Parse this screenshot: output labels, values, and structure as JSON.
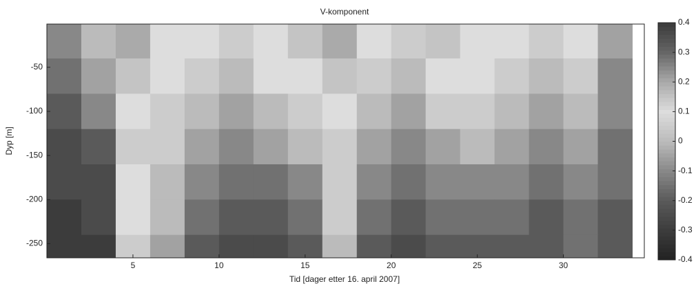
{
  "chart_data": {
    "type": "heatmap",
    "title": "V-komponent",
    "xlabel": "Tid [dager etter 16. april 2007]",
    "ylabel": "Dyp [m]",
    "x": [
      1,
      3,
      5,
      7,
      9,
      11,
      13,
      15,
      17,
      19,
      21,
      23,
      25,
      27,
      29,
      31,
      33
    ],
    "y": [
      -20,
      -60,
      -100,
      -140,
      -180,
      -220,
      -260
    ],
    "z": [
      [
        -0.1,
        0.0,
        0.2,
        0.1,
        0.1,
        0.05,
        0.1,
        0.15,
        0.2,
        0.1,
        0.05,
        0.15,
        0.1,
        0.1,
        0.05,
        0.1,
        -0.05
      ],
      [
        -0.15,
        -0.05,
        0.15,
        0.1,
        0.05,
        0.0,
        0.1,
        0.1,
        0.15,
        0.05,
        0.0,
        0.1,
        0.1,
        0.05,
        0.0,
        0.05,
        -0.1
      ],
      [
        -0.2,
        -0.1,
        0.1,
        0.05,
        0.0,
        -0.05,
        0.0,
        0.05,
        0.1,
        0.0,
        -0.05,
        0.05,
        0.05,
        0.0,
        -0.05,
        0.0,
        -0.1
      ],
      [
        -0.25,
        -0.2,
        0.05,
        0.05,
        -0.05,
        -0.1,
        -0.05,
        0.0,
        0.05,
        -0.05,
        -0.1,
        -0.05,
        0.0,
        -0.05,
        -0.1,
        -0.05,
        -0.15
      ],
      [
        -0.25,
        -0.25,
        0.1,
        0.0,
        -0.1,
        -0.15,
        -0.15,
        -0.1,
        0.05,
        -0.1,
        -0.15,
        -0.1,
        -0.1,
        -0.1,
        -0.15,
        -0.1,
        -0.15
      ],
      [
        -0.3,
        -0.25,
        0.1,
        0.0,
        -0.15,
        -0.2,
        -0.2,
        -0.15,
        0.05,
        -0.15,
        -0.2,
        -0.15,
        -0.15,
        -0.15,
        -0.2,
        -0.15,
        -0.2
      ],
      [
        -0.3,
        -0.3,
        0.05,
        -0.05,
        -0.2,
        -0.25,
        -0.25,
        -0.2,
        0.0,
        -0.2,
        -0.25,
        -0.2,
        -0.2,
        -0.2,
        -0.2,
        -0.15,
        -0.2
      ]
    ],
    "xlim": [
      0,
      34.7
    ],
    "xticks": [
      5,
      10,
      15,
      20,
      25,
      30
    ],
    "ylim": [
      -266,
      -1
    ],
    "yticks": [
      -50,
      -100,
      -150,
      -200,
      -250
    ],
    "zlim": [
      -0.4,
      0.4
    ],
    "zticks": [
      0.4,
      0.3,
      0.2,
      0.1,
      0,
      -0.1,
      -0.2,
      -0.3,
      -0.4
    ],
    "colormap": [
      "#222222",
      "#3c3c3c",
      "#5a5a5a",
      "#888888",
      "#bbbbbb",
      "#dddddd",
      "#aaaaaa",
      "#666666",
      "#3a3a3a"
    ]
  }
}
